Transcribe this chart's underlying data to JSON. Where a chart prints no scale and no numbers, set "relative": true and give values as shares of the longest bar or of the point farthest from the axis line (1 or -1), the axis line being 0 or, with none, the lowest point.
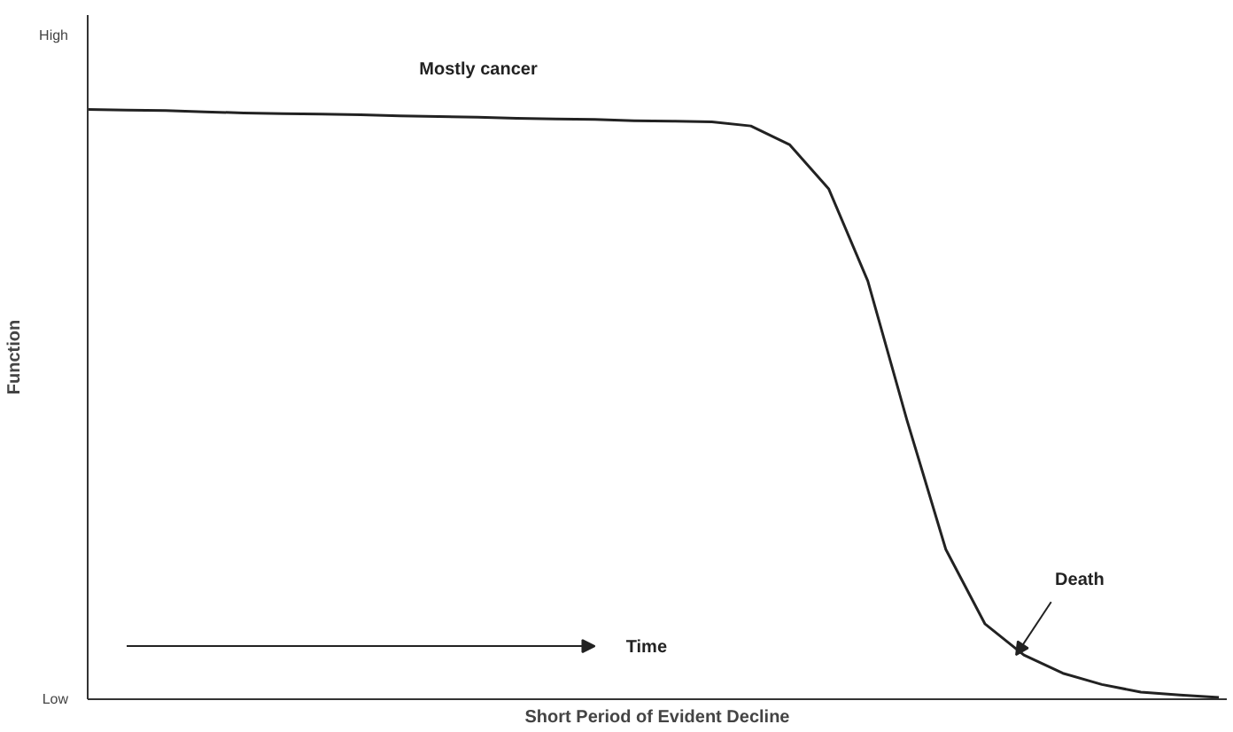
{
  "chart_data": {
    "type": "line",
    "xlabel": "Short Period of Evident Decline",
    "ylabel": "Function",
    "categories": [
      null,
      null,
      null,
      null,
      null,
      null,
      null,
      null,
      null,
      null,
      null,
      null,
      null,
      null,
      null,
      null,
      null,
      null,
      null,
      null,
      null,
      null,
      null,
      null,
      null,
      null,
      null,
      null,
      null,
      null
    ],
    "series": [
      {
        "color": "#222222",
        "values": [
          1,
          0.999,
          0.998,
          0.996,
          0.994,
          0.993,
          0.992,
          0.991,
          0.989,
          0.988,
          0.987,
          0.985,
          0.984,
          0.983,
          0.981,
          0.98,
          0.979,
          0.972,
          0.94,
          0.865,
          0.709,
          0.474,
          0.254,
          0.128,
          0.075,
          0.044,
          0.025,
          0.012,
          0.007,
          0.003
        ]
      }
    ],
    "relative": true,
    "annotations": [
      "Mostly cancer",
      "Time",
      "Death",
      "High",
      "Low"
    ],
    "marker": "none",
    "line_style": "solid"
  }
}
